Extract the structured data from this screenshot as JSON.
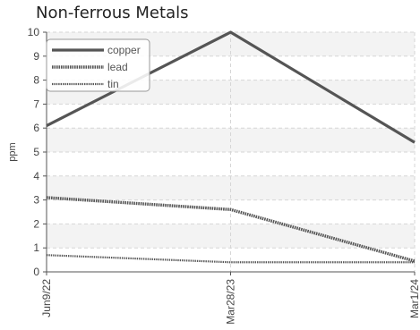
{
  "chart_data": {
    "type": "line",
    "title": "Non-ferrous Metals",
    "ylabel": "ppm",
    "xlabel": "",
    "categories": [
      "Jun9/22",
      "Mar28/23",
      "Mar1/24"
    ],
    "ylim": [
      0,
      10
    ],
    "yticks": [
      "0",
      "1",
      "2",
      "3",
      "4",
      "5",
      "6",
      "7",
      "8",
      "9",
      "10"
    ],
    "grid": true,
    "legend_position": "top-left",
    "series": [
      {
        "name": "copper",
        "values": [
          6.1,
          10.0,
          5.4
        ],
        "color": "#555555",
        "style": "solid"
      },
      {
        "name": "lead",
        "values": [
          3.1,
          2.6,
          0.45
        ],
        "color": "#555555",
        "style": "dotted-thick"
      },
      {
        "name": "tin",
        "values": [
          0.7,
          0.4,
          0.4
        ],
        "color": "#555555",
        "style": "dotted-thin"
      }
    ]
  }
}
